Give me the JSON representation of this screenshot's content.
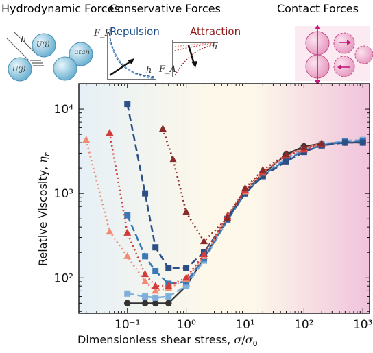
{
  "header": {
    "hydro_title": "Hydrodynamic Forces",
    "conservative_title": "Conservative Forces",
    "contact_title": "Contact Forces",
    "repulsion_label": "Repulsion",
    "attraction_label": "Attraction"
  },
  "schematics": {
    "hydro_labels": [
      "h",
      "U(i)",
      "U(j)",
      "utan"
    ],
    "repulsion_axis": [
      "F_R",
      "h"
    ],
    "attraction_axis": [
      "F_A",
      "h"
    ]
  },
  "colors": {
    "bg_left": "#e6f0f6",
    "bg_mid": "#fdf8ea",
    "bg_right": "#f0c3dc",
    "black": "#333333",
    "light_blue": "#7fb0dc",
    "mid_blue": "#3a78b6",
    "dark_blue": "#2c4f86",
    "salmon": "#f28b74",
    "red": "#d03c3c",
    "dark_red": "#8b2a2a"
  },
  "chart_data": {
    "type": "line",
    "xscale": "log",
    "yscale": "log",
    "xlabel": "Dimensionless shear stress, σ/σ₀",
    "ylabel": "Relative Viscosity, ηᵣ",
    "xlim": [
      0.015,
      1300
    ],
    "ylim": [
      38,
      20000
    ],
    "xticks": [
      {
        "value": 0.1,
        "label": "10⁻¹"
      },
      {
        "value": 1,
        "label": "10⁰"
      },
      {
        "value": 10,
        "label": "10¹"
      },
      {
        "value": 100,
        "label": "10²"
      },
      {
        "value": 1000,
        "label": "10³"
      }
    ],
    "yticks": [
      {
        "value": 100,
        "label": "10²"
      },
      {
        "value": 1000,
        "label": "10³"
      },
      {
        "value": 10000,
        "label": "10⁴"
      }
    ],
    "series": [
      {
        "color": "#333333",
        "marker": "circle",
        "dash": "none",
        "points": [
          [
            0.1,
            50
          ],
          [
            0.2,
            50
          ],
          [
            0.3,
            50
          ],
          [
            0.5,
            50
          ],
          [
            1,
            80
          ],
          [
            2,
            170
          ],
          [
            5,
            500
          ],
          [
            10,
            1050
          ],
          [
            20,
            1700
          ],
          [
            50,
            2900
          ],
          [
            100,
            3600
          ],
          [
            200,
            3900
          ],
          [
            500,
            4000
          ],
          [
            1000,
            4000
          ]
        ]
      },
      {
        "color": "#7fb0dc",
        "marker": "square",
        "dash": "10,5",
        "points": [
          [
            0.1,
            65
          ],
          [
            0.2,
            60
          ],
          [
            0.3,
            58
          ],
          [
            0.5,
            60
          ],
          [
            1,
            80
          ],
          [
            2,
            160
          ],
          [
            5,
            480
          ],
          [
            10,
            1000
          ],
          [
            20,
            1650
          ],
          [
            50,
            2600
          ],
          [
            100,
            3300
          ],
          [
            200,
            3800
          ],
          [
            500,
            4200
          ],
          [
            1000,
            4300
          ]
        ]
      },
      {
        "color": "#3a78b6",
        "marker": "square",
        "dash": "10,5",
        "points": [
          [
            0.1,
            550
          ],
          [
            0.2,
            180
          ],
          [
            0.3,
            120
          ],
          [
            0.5,
            85
          ],
          [
            1,
            90
          ],
          [
            2,
            170
          ],
          [
            5,
            480
          ],
          [
            10,
            1000
          ],
          [
            20,
            1650
          ],
          [
            50,
            2500
          ],
          [
            100,
            3200
          ],
          [
            200,
            3700
          ],
          [
            500,
            4100
          ],
          [
            1000,
            4200
          ]
        ]
      },
      {
        "color": "#2c4f86",
        "marker": "square",
        "dash": "10,5",
        "points": [
          [
            0.1,
            11500
          ],
          [
            0.2,
            1000
          ],
          [
            0.3,
            230
          ],
          [
            0.5,
            130
          ],
          [
            1,
            130
          ],
          [
            2,
            200
          ],
          [
            5,
            500
          ],
          [
            10,
            1000
          ],
          [
            20,
            1600
          ],
          [
            50,
            2400
          ],
          [
            100,
            3100
          ],
          [
            200,
            3700
          ],
          [
            500,
            4000
          ],
          [
            1000,
            4000
          ]
        ]
      },
      {
        "color": "#f28b74",
        "marker": "triangle",
        "dash": "2,4",
        "points": [
          [
            0.02,
            4300
          ],
          [
            0.05,
            350
          ],
          [
            0.1,
            180
          ],
          [
            0.2,
            90
          ],
          [
            0.3,
            70
          ],
          [
            0.5,
            75
          ],
          [
            1,
            95
          ],
          [
            2,
            180
          ],
          [
            5,
            520
          ],
          [
            10,
            1050
          ],
          [
            20,
            1750
          ],
          [
            50,
            2800
          ],
          [
            100,
            3400
          ],
          [
            200,
            3900
          ]
        ]
      },
      {
        "color": "#d03c3c",
        "marker": "triangle",
        "dash": "2,4",
        "points": [
          [
            0.05,
            5200
          ],
          [
            0.1,
            340
          ],
          [
            0.2,
            110
          ],
          [
            0.3,
            80
          ],
          [
            0.5,
            80
          ],
          [
            1,
            100
          ],
          [
            2,
            190
          ],
          [
            5,
            540
          ],
          [
            10,
            1100
          ],
          [
            20,
            1800
          ],
          [
            50,
            2800
          ],
          [
            100,
            3300
          ],
          [
            200,
            3800
          ]
        ]
      },
      {
        "color": "#8b2a2a",
        "marker": "triangle",
        "dash": "2,4",
        "points": [
          [
            0.4,
            5800
          ],
          [
            0.6,
            2500
          ],
          [
            1,
            600
          ],
          [
            2,
            270
          ],
          [
            5,
            510
          ],
          [
            10,
            1150
          ],
          [
            20,
            1900
          ],
          [
            50,
            2900
          ],
          [
            100,
            3500
          ],
          [
            200,
            3900
          ]
        ]
      }
    ]
  }
}
